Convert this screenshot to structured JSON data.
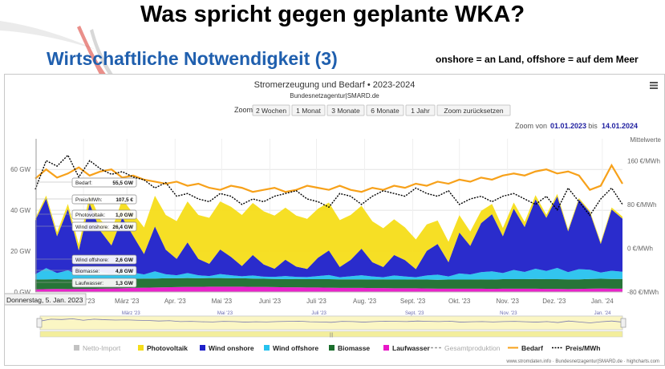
{
  "slide": {
    "title": "Was spricht gegen geplante WKA?",
    "subtitle": "Wirtschaftliche Notwendigkeit (3)",
    "note": "onshore = an Land, offshore = auf dem Meer"
  },
  "zoom": {
    "label": "Zoom",
    "buttons": [
      "2 Wochen",
      "1 Monat",
      "3 Monate",
      "6 Monate",
      "1 Jahr",
      "Zoom zurücksetzen"
    ],
    "range_prefix": "Zoom von",
    "from": "01.01.2023",
    "mid": "bis",
    "to": "14.01.2024"
  },
  "menu_icon": "hamburger-menu-icon",
  "tooltip": {
    "date": "Donnerstag, 5. Jan. 2023",
    "entries": [
      {
        "label": "Bedarf:",
        "value": "55,5 GW"
      },
      {
        "label": "Preis/MWh:",
        "value": "107,5 €"
      },
      {
        "label": "Photovoltaik:",
        "value": "1,0 GW"
      },
      {
        "label": "Wind onshore:",
        "value": "26,4 GW"
      },
      {
        "label": "Wind offshore:",
        "value": "2,6 GW"
      },
      {
        "label": "Biomasse:",
        "value": "4,8 GW"
      },
      {
        "label": "Laufwasser:",
        "value": "1,3 GW"
      }
    ]
  },
  "credits": "www.stromdaten.info · Bundesnetzagentur|SMARD.de · highcharts.com",
  "chart_data": {
    "type": "area",
    "title": "Stromerzeugung und Bedarf  •  2023-2024",
    "subtitle": "Bundesnetzagentur|SMARD.de",
    "ylabel": "",
    "ylim": [
      0,
      75
    ],
    "y_ticks": [
      "0 GW",
      "20 GW",
      "40 GW",
      "60 GW"
    ],
    "y_tick_values": [
      0,
      20,
      40,
      60
    ],
    "y2_title": "Mittelwerte",
    "y2_ticks": [
      "-80 €/MWh",
      "0 €/MWh",
      "80 €/MWh",
      "160 €/MWh"
    ],
    "y2_tick_values": [
      -80,
      0,
      80,
      160
    ],
    "y2lim": [
      -80,
      200
    ],
    "x_ticks": [
      "Feb. '23",
      "März '23",
      "Apr. '23",
      "Mai '23",
      "Juni '23",
      "Juli '23",
      "Aug. '23",
      "Sept. '23",
      "Okt. '23",
      "Nov. '23",
      "Dez. '23",
      "Jan. '24"
    ],
    "x_tick_days": [
      31,
      59,
      90,
      120,
      151,
      181,
      212,
      243,
      273,
      304,
      334,
      365
    ],
    "navigator_ticks": [
      "März '23",
      "Mai '23",
      "Juli '23",
      "Sept. '23",
      "Nov. '23",
      "Jan. '24"
    ],
    "navigator_tick_days": [
      59,
      120,
      181,
      243,
      304,
      365
    ],
    "x_start": "01.01.2023",
    "x_end": "14.01.2024",
    "x_range_days": [
      0,
      378
    ],
    "grid": true,
    "legend_position": "bottom",
    "colors": {
      "netto_import": "#c2c2c2",
      "photovoltaik": "#f5dd19",
      "wind_onshore": "#1f21c9",
      "wind_offshore": "#27c2ee",
      "biomasse": "#1b6e2d",
      "laufwasser": "#e817c7",
      "gesamtproduktion": "#9a9a9a",
      "bedarf": "#f7a11a",
      "preis": "#000000"
    },
    "legend": [
      {
        "name": "Netto-Import",
        "key": "netto_import",
        "kind": "box"
      },
      {
        "name": "Photovoltaik",
        "key": "photovoltaik",
        "kind": "box"
      },
      {
        "name": "Wind onshore",
        "key": "wind_onshore",
        "kind": "box"
      },
      {
        "name": "Wind offshore",
        "key": "wind_offshore",
        "kind": "box"
      },
      {
        "name": "Biomasse",
        "key": "biomasse",
        "kind": "box"
      },
      {
        "name": "Laufwasser",
        "key": "laufwasser",
        "kind": "box"
      },
      {
        "name": "Gesamtproduktion",
        "key": "gesamtproduktion",
        "kind": "dash"
      },
      {
        "name": "Bedarf",
        "key": "bedarf",
        "kind": "line"
      },
      {
        "name": "Preis/MWh",
        "key": "preis",
        "kind": "dotted"
      }
    ],
    "x": [
      0,
      7,
      14,
      21,
      28,
      35,
      42,
      49,
      56,
      63,
      70,
      77,
      84,
      91,
      98,
      105,
      112,
      119,
      126,
      133,
      140,
      147,
      154,
      161,
      168,
      175,
      182,
      189,
      196,
      203,
      210,
      217,
      224,
      231,
      238,
      245,
      252,
      259,
      266,
      273,
      280,
      287,
      294,
      301,
      308,
      315,
      322,
      329,
      336,
      343,
      350,
      357,
      364,
      371,
      378
    ],
    "series": [
      {
        "name": "Laufwasser",
        "key": "laufwasser",
        "values": [
          1.3,
          1.4,
          1.5,
          1.4,
          1.5,
          1.5,
          1.6,
          1.7,
          1.8,
          2.0,
          2.1,
          2.2,
          2.3,
          2.4,
          2.5,
          2.5,
          2.6,
          2.6,
          2.6,
          2.6,
          2.5,
          2.5,
          2.4,
          2.3,
          2.3,
          2.2,
          2.2,
          2.1,
          2.0,
          2.0,
          2.0,
          1.9,
          1.9,
          1.8,
          1.8,
          1.8,
          1.7,
          1.6,
          1.6,
          1.6,
          1.6,
          1.6,
          1.5,
          1.6,
          1.6,
          1.6,
          1.6,
          1.5,
          1.5,
          1.4,
          1.5,
          1.6,
          1.7,
          1.6,
          1.6
        ]
      },
      {
        "name": "Biomasse",
        "key": "biomasse",
        "values": [
          4.8,
          4.8,
          4.8,
          4.7,
          4.8,
          4.8,
          4.7,
          4.6,
          4.6,
          4.5,
          4.5,
          4.4,
          4.4,
          4.3,
          4.3,
          4.2,
          4.2,
          4.2,
          4.1,
          4.1,
          4.1,
          4.0,
          4.0,
          4.0,
          4.1,
          4.1,
          4.1,
          4.2,
          4.2,
          4.2,
          4.2,
          4.2,
          4.3,
          4.3,
          4.3,
          4.4,
          4.4,
          4.4,
          4.5,
          4.5,
          4.5,
          4.6,
          4.6,
          4.7,
          4.7,
          4.7,
          4.8,
          4.8,
          4.8,
          4.8,
          4.7,
          4.8,
          4.8,
          4.8,
          4.8
        ]
      },
      {
        "name": "Wind offshore",
        "key": "wind_offshore",
        "values": [
          2.6,
          5.5,
          3.0,
          4.5,
          2.0,
          5.0,
          3.5,
          2.5,
          4.0,
          3.0,
          2.0,
          3.5,
          2.0,
          1.5,
          2.5,
          1.5,
          1.0,
          2.0,
          1.5,
          1.0,
          1.5,
          1.0,
          1.0,
          1.5,
          1.0,
          1.0,
          1.5,
          2.0,
          1.0,
          1.5,
          2.0,
          1.5,
          1.0,
          2.0,
          1.5,
          1.0,
          2.0,
          2.5,
          1.5,
          3.0,
          2.5,
          3.5,
          4.0,
          3.0,
          4.5,
          3.5,
          5.0,
          4.0,
          5.5,
          3.5,
          5.0,
          4.5,
          3.0,
          4.0,
          3.5
        ]
      },
      {
        "name": "Wind onshore",
        "key": "wind_onshore",
        "values": [
          26.4,
          34.0,
          18.0,
          30.0,
          12.0,
          32.0,
          20.0,
          14.0,
          26.0,
          18.0,
          10.0,
          22.0,
          12.0,
          8.0,
          15.0,
          8.0,
          6.0,
          12.0,
          9.0,
          5.0,
          10.0,
          6.0,
          4.0,
          8.0,
          5.0,
          4.0,
          9.0,
          12.0,
          5.0,
          8.0,
          13.0,
          7.0,
          5.0,
          10.0,
          8.0,
          4.0,
          12.0,
          15.0,
          7.0,
          20.0,
          14.0,
          24.0,
          28.0,
          18.0,
          30.0,
          22.0,
          34.0,
          26.0,
          35.0,
          20.0,
          34.0,
          28.0,
          14.0,
          30.0,
          26.0
        ]
      },
      {
        "name": "Photovoltaik",
        "key": "photovoltaik",
        "values": [
          1.0,
          1.5,
          2.0,
          2.5,
          3.0,
          4.0,
          5.5,
          7.0,
          9.0,
          11.0,
          13.0,
          15.0,
          17.0,
          18.5,
          20.0,
          21.5,
          22.5,
          23.5,
          24.5,
          25.0,
          25.5,
          26.0,
          26.0,
          25.5,
          25.0,
          24.5,
          24.0,
          23.5,
          23.0,
          22.0,
          21.0,
          20.0,
          19.0,
          17.5,
          16.0,
          14.5,
          13.0,
          11.5,
          10.0,
          8.5,
          7.0,
          6.0,
          5.0,
          4.0,
          3.0,
          2.5,
          2.0,
          1.5,
          1.2,
          1.0,
          0.8,
          0.8,
          0.9,
          1.0,
          1.0
        ]
      },
      {
        "name": "Bedarf",
        "key": "bedarf",
        "values": [
          55.5,
          60.0,
          56.0,
          58.0,
          61.0,
          57.0,
          59.0,
          60.0,
          56.0,
          57.0,
          55.0,
          54.0,
          53.0,
          54.0,
          52.0,
          53.0,
          51.0,
          50.0,
          52.0,
          51.0,
          49.0,
          50.0,
          51.0,
          49.0,
          50.0,
          52.0,
          51.0,
          50.0,
          52.0,
          50.0,
          49.0,
          51.0,
          50.0,
          52.0,
          51.0,
          53.0,
          52.0,
          54.0,
          53.0,
          55.0,
          54.0,
          56.0,
          55.0,
          57.0,
          58.0,
          57.0,
          59.0,
          60.0,
          58.0,
          59.0,
          57.0,
          50.0,
          52.0,
          62.0,
          53.0
        ]
      },
      {
        "name": "Preis/MWh",
        "key": "preis",
        "values": [
          107.5,
          160.0,
          150.0,
          170.0,
          130.0,
          160.0,
          145.0,
          135.0,
          140.0,
          130.0,
          125.0,
          110.0,
          120.0,
          95.0,
          100.0,
          90.0,
          85.0,
          100.0,
          95.0,
          80.0,
          90.0,
          85.0,
          95.0,
          100.0,
          105.0,
          90.0,
          85.0,
          75.0,
          100.0,
          95.0,
          80.0,
          95.0,
          105.0,
          100.0,
          95.0,
          110.0,
          100.0,
          95.0,
          105.0,
          80.0,
          90.0,
          95.0,
          85.0,
          95.0,
          100.0,
          90.0,
          80.0,
          95.0,
          70.0,
          110.0,
          85.0,
          60.0,
          90.0,
          110.0,
          80.0
        ]
      }
    ]
  }
}
